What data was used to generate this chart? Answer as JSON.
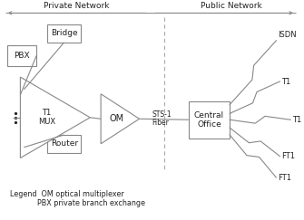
{
  "fig_width": 3.35,
  "fig_height": 2.43,
  "dpi": 100,
  "bg_color": "#ffffff",
  "line_color": "#888888",
  "text_color": "#222222",
  "private_label": "Private Network",
  "public_label": "Public Network",
  "legend_line1": "Legend  OM optical multiplexer",
  "legend_line2": "            PBX private branch exchange",
  "pbx_label": "PBX",
  "bridge_label": "Bridge",
  "mux_label": "T1\nMUX",
  "om_label": "OM",
  "sts_label": "STS-1",
  "fiber_label": "Fiber",
  "co_label": "Central\nOffice",
  "router_label": "Router",
  "isdn_label": "ISDN",
  "t1_upper_label": "T1",
  "t1_mid_label": "T1",
  "ft1_lower_label": "FT1",
  "ft1_lowest_label": "FT1"
}
